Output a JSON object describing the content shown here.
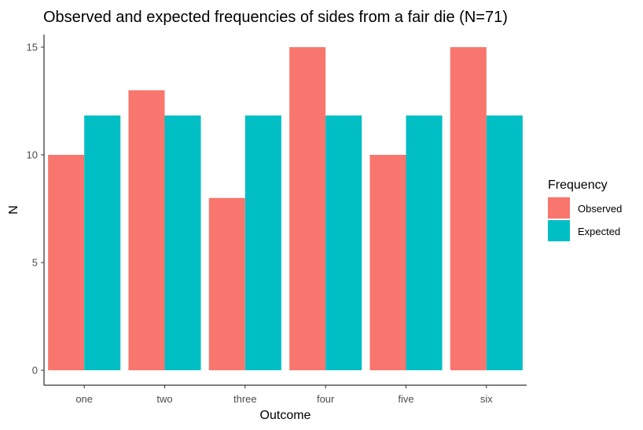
{
  "chart_data": {
    "type": "bar",
    "title": "Observed and expected frequencies of sides from a fair die (N=71)",
    "xlabel": "Outcome",
    "ylabel": "N",
    "categories": [
      "one",
      "two",
      "three",
      "four",
      "five",
      "six"
    ],
    "series": [
      {
        "name": "Observed",
        "color": "#F8766D",
        "values": [
          10,
          13,
          8,
          15,
          10,
          15
        ]
      },
      {
        "name": "Expected",
        "color": "#00BFC4",
        "values": [
          11.83,
          11.83,
          11.83,
          11.83,
          11.83,
          11.83
        ]
      }
    ],
    "ylim": [
      0,
      15.75
    ],
    "yticks": [
      0,
      5,
      10,
      15
    ],
    "grid": false,
    "legend": {
      "title": "Frequency",
      "position": "right"
    }
  }
}
